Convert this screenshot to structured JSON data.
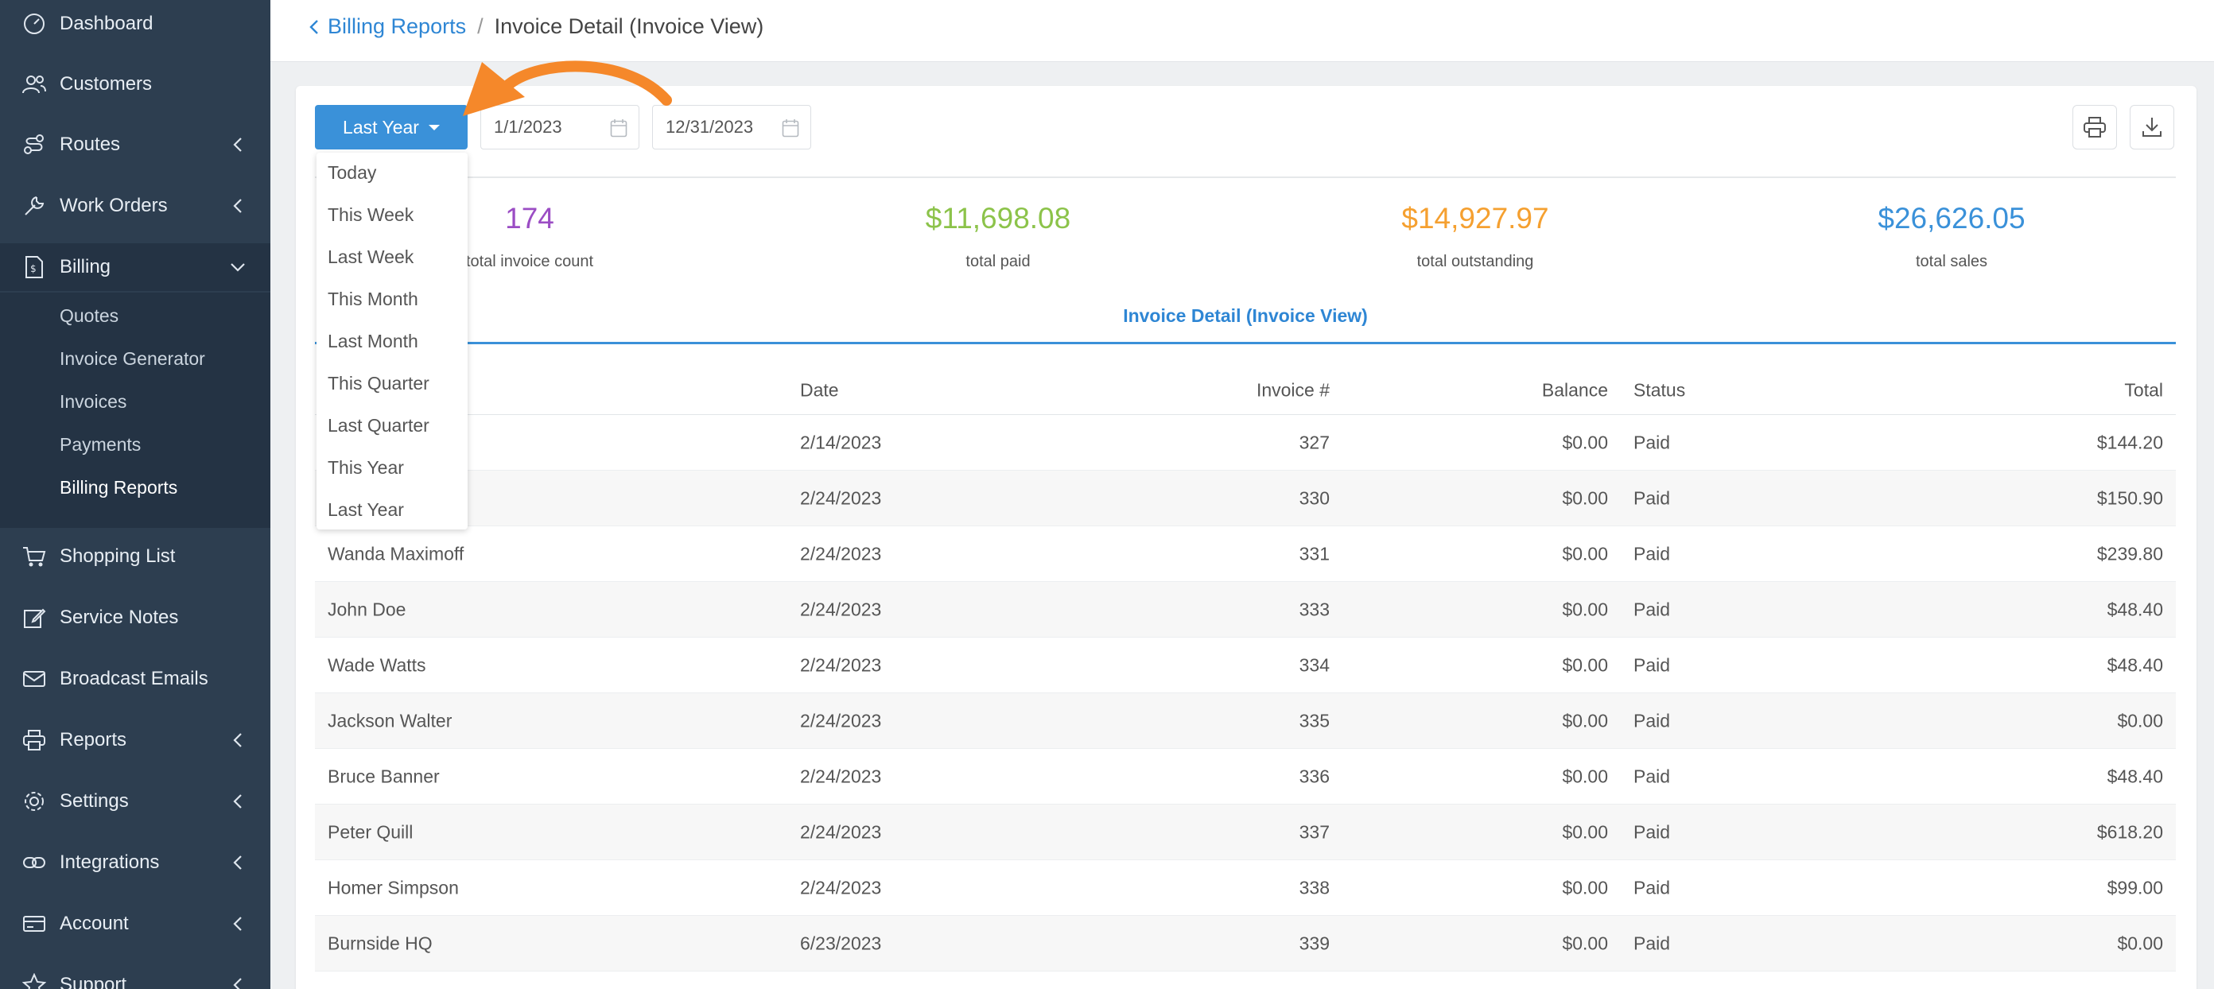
{
  "sidebar": {
    "items": [
      {
        "label": "Dashboard",
        "icon": "dashboard-icon",
        "has_chevron": false
      },
      {
        "label": "Customers",
        "icon": "customers-icon",
        "has_chevron": false
      },
      {
        "label": "Routes",
        "icon": "routes-icon",
        "has_chevron": true
      },
      {
        "label": "Work Orders",
        "icon": "wrench-icon",
        "has_chevron": true
      },
      {
        "label": "Billing",
        "icon": "billing-icon",
        "has_chevron": true,
        "expanded": true
      },
      {
        "label": "Shopping List",
        "icon": "cart-icon",
        "has_chevron": false
      },
      {
        "label": "Service Notes",
        "icon": "edit-icon",
        "has_chevron": false
      },
      {
        "label": "Broadcast Emails",
        "icon": "mail-icon",
        "has_chevron": false
      },
      {
        "label": "Reports",
        "icon": "printer-icon",
        "has_chevron": true
      },
      {
        "label": "Settings",
        "icon": "gear-icon",
        "has_chevron": true
      },
      {
        "label": "Integrations",
        "icon": "link-icon",
        "has_chevron": true
      },
      {
        "label": "Account",
        "icon": "card-icon",
        "has_chevron": true
      },
      {
        "label": "Support",
        "icon": "star-icon",
        "has_chevron": true
      }
    ],
    "billing_sub": [
      "Quotes",
      "Invoice Generator",
      "Invoices",
      "Payments",
      "Billing Reports"
    ],
    "billing_current": "Billing Reports"
  },
  "breadcrumb": {
    "back_label": "Billing Reports",
    "separator": "/",
    "current": "Invoice Detail (Invoice View)"
  },
  "filters": {
    "range_label": "Last Year",
    "start_date": "1/1/2023",
    "end_date": "12/31/2023",
    "options": [
      "Today",
      "This Week",
      "Last Week",
      "This Month",
      "Last Month",
      "This Quarter",
      "Last Quarter",
      "This Year",
      "Last Year"
    ]
  },
  "stats": [
    {
      "value": "174",
      "label": "total invoice count",
      "color": "#9b4dc4"
    },
    {
      "value": "$11,698.08",
      "label": "total paid",
      "color": "#8cc34a"
    },
    {
      "value": "$14,927.97",
      "label": "total outstanding",
      "color": "#f5a030"
    },
    {
      "value": "$26,626.05",
      "label": "total sales",
      "color": "#3a91d9"
    }
  ],
  "section_title": "Invoice Detail (Invoice View)",
  "table": {
    "headers": {
      "date": "Date",
      "invoice": "Invoice #",
      "balance": "Balance",
      "status": "Status",
      "total": "Total"
    },
    "rows": [
      {
        "name": "",
        "date": "2/14/2023",
        "invoice": "327",
        "balance": "$0.00",
        "status": "Paid",
        "total": "$144.20"
      },
      {
        "name": "",
        "date": "2/24/2023",
        "invoice": "330",
        "balance": "$0.00",
        "status": "Paid",
        "total": "$150.90"
      },
      {
        "name": "Wanda Maximoff",
        "date": "2/24/2023",
        "invoice": "331",
        "balance": "$0.00",
        "status": "Paid",
        "total": "$239.80"
      },
      {
        "name": "John Doe",
        "date": "2/24/2023",
        "invoice": "333",
        "balance": "$0.00",
        "status": "Paid",
        "total": "$48.40"
      },
      {
        "name": "Wade Watts",
        "date": "2/24/2023",
        "invoice": "334",
        "balance": "$0.00",
        "status": "Paid",
        "total": "$48.40"
      },
      {
        "name": "Jackson Walter",
        "date": "2/24/2023",
        "invoice": "335",
        "balance": "$0.00",
        "status": "Paid",
        "total": "$0.00"
      },
      {
        "name": "Bruce Banner",
        "date": "2/24/2023",
        "invoice": "336",
        "balance": "$0.00",
        "status": "Paid",
        "total": "$48.40"
      },
      {
        "name": "Peter Quill",
        "date": "2/24/2023",
        "invoice": "337",
        "balance": "$0.00",
        "status": "Paid",
        "total": "$618.20"
      },
      {
        "name": "Homer Simpson",
        "date": "2/24/2023",
        "invoice": "338",
        "balance": "$0.00",
        "status": "Paid",
        "total": "$99.00"
      },
      {
        "name": "Burnside HQ",
        "date": "6/23/2023",
        "invoice": "339",
        "balance": "$0.00",
        "status": "Paid",
        "total": "$0.00"
      }
    ]
  },
  "annotation": {
    "arrow_color": "#f5882a"
  }
}
